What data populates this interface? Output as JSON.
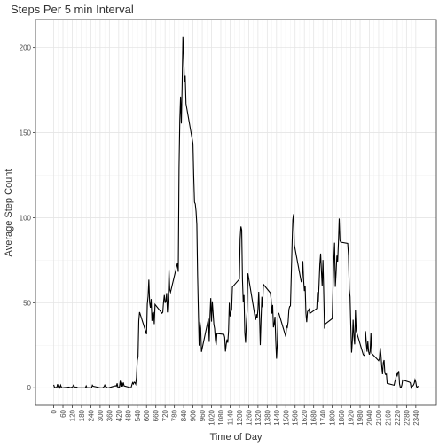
{
  "chart_data": {
    "type": "line",
    "title": "Steps Per 5 min Interval",
    "x_label": "Time of Day",
    "y_label": "Average Step Count",
    "color": "#000000",
    "grid": true,
    "xlim": [
      -117.75,
      2472.75
    ],
    "ylim": [
      -10.3,
      216.5
    ],
    "xticks": [
      0,
      60,
      120,
      180,
      240,
      300,
      360,
      420,
      480,
      540,
      600,
      660,
      720,
      780,
      840,
      900,
      960,
      1020,
      1080,
      1140,
      1200,
      1260,
      1320,
      1380,
      1440,
      1500,
      1560,
      1620,
      1680,
      1740,
      1800,
      1860,
      1920,
      1980,
      2040,
      2100,
      2160,
      2220,
      2280,
      2340
    ],
    "yticks": [
      0,
      50,
      100,
      150,
      200
    ],
    "x": [
      0,
      5,
      10,
      15,
      20,
      25,
      30,
      35,
      40,
      45,
      50,
      55,
      100,
      105,
      110,
      115,
      120,
      125,
      130,
      135,
      140,
      145,
      150,
      155,
      200,
      205,
      210,
      215,
      220,
      225,
      230,
      235,
      240,
      245,
      250,
      255,
      300,
      305,
      310,
      315,
      320,
      325,
      330,
      335,
      340,
      345,
      350,
      355,
      400,
      405,
      410,
      415,
      420,
      425,
      430,
      435,
      440,
      445,
      450,
      455,
      500,
      505,
      510,
      515,
      520,
      525,
      530,
      535,
      540,
      545,
      550,
      555,
      600,
      605,
      610,
      615,
      620,
      625,
      630,
      635,
      640,
      645,
      650,
      655,
      700,
      705,
      710,
      715,
      720,
      725,
      730,
      735,
      740,
      745,
      750,
      755,
      800,
      805,
      810,
      815,
      820,
      825,
      830,
      835,
      840,
      845,
      850,
      855,
      900,
      905,
      910,
      915,
      920,
      925,
      930,
      935,
      940,
      945,
      950,
      955,
      1000,
      1005,
      1010,
      1015,
      1020,
      1025,
      1030,
      1035,
      1040,
      1045,
      1050,
      1055,
      1100,
      1105,
      1110,
      1115,
      1120,
      1125,
      1130,
      1135,
      1140,
      1145,
      1150,
      1155,
      1200,
      1205,
      1210,
      1215,
      1220,
      1225,
      1230,
      1235,
      1240,
      1245,
      1250,
      1255,
      1300,
      1305,
      1310,
      1315,
      1320,
      1325,
      1330,
      1335,
      1340,
      1345,
      1350,
      1355,
      1400,
      1405,
      1410,
      1415,
      1420,
      1425,
      1430,
      1435,
      1440,
      1445,
      1450,
      1455,
      1500,
      1505,
      1510,
      1515,
      1520,
      1525,
      1530,
      1535,
      1540,
      1545,
      1550,
      1555,
      1600,
      1605,
      1610,
      1615,
      1620,
      1625,
      1630,
      1635,
      1640,
      1645,
      1650,
      1655,
      1700,
      1705,
      1710,
      1715,
      1720,
      1725,
      1730,
      1735,
      1740,
      1745,
      1750,
      1755,
      1800,
      1805,
      1810,
      1815,
      1820,
      1825,
      1830,
      1835,
      1840,
      1845,
      1850,
      1855,
      1900,
      1905,
      1910,
      1915,
      1920,
      1925,
      1930,
      1935,
      1940,
      1945,
      1950,
      1955,
      2000,
      2005,
      2010,
      2015,
      2020,
      2025,
      2030,
      2035,
      2040,
      2045,
      2050,
      2055,
      2100,
      2105,
      2110,
      2115,
      2120,
      2125,
      2130,
      2135,
      2140,
      2145,
      2150,
      2155,
      2200,
      2205,
      2210,
      2215,
      2220,
      2225,
      2230,
      2235,
      2240,
      2245,
      2250,
      2255,
      2300,
      2305,
      2310,
      2315,
      2320,
      2325,
      2330,
      2335,
      2340,
      2345,
      2350,
      2355
    ],
    "values": [
      1.7,
      0.3,
      0.1,
      0.2,
      0.1,
      2.1,
      0.5,
      0.9,
      0,
      1.5,
      0.3,
      0,
      0.4,
      0,
      0.2,
      0.3,
      0,
      1.1,
      1.8,
      0.2,
      0.2,
      0.4,
      0.3,
      0,
      0,
      0,
      1.1,
      0,
      0,
      0.1,
      0,
      0.2,
      0,
      0,
      1.5,
      0.9,
      0,
      0,
      0,
      0,
      0.2,
      0.6,
      1.6,
      0.6,
      0.5,
      0.1,
      0,
      0,
      1.2,
      0.9,
      2.6,
      0,
      0.3,
      0.4,
      4.1,
      0.7,
      3.5,
      0.8,
      3.1,
      1.1,
      0,
      1.6,
      3,
      2.2,
      3.3,
      3,
      2.1,
      6.1,
      16,
      18.3,
      39.5,
      44.5,
      31.5,
      49.3,
      53.8,
      63.5,
      50,
      47.1,
      52.2,
      39.3,
      44,
      44.2,
      37.4,
      49,
      43.8,
      44.4,
      50.5,
      54.5,
      49.9,
      51,
      55.7,
      44.3,
      52.3,
      69.5,
      57.8,
      56.2,
      73.4,
      68.2,
      129.4,
      157.5,
      171.2,
      155.4,
      177.3,
      206.2,
      195.9,
      179.6,
      183.4,
      167,
      143.5,
      124,
      109.1,
      108.1,
      103.7,
      96,
      66.2,
      45.2,
      24.8,
      38.8,
      35,
      21.1,
      40.6,
      27,
      42.4,
      52.7,
      38.9,
      50.8,
      44.3,
      37.4,
      34.7,
      28.3,
      25.1,
      31.9,
      31.4,
      29.7,
      21.3,
      25.5,
      28.4,
      26.5,
      33.4,
      50,
      42,
      44.6,
      46,
      59.2,
      63.9,
      87.7,
      94.8,
      92.8,
      63.4,
      50.2,
      54.5,
      32.4,
      26.5,
      37.7,
      45.1,
      67.3,
      42.3,
      39.9,
      43.3,
      41,
      46.2,
      56.4,
      42.8,
      25.1,
      40,
      53.5,
      47.3,
      60.8,
      55.8,
      52,
      43.6,
      48.7,
      35.5,
      37.5,
      41.8,
      27.5,
      17.1,
      26.1,
      43.6,
      43.8,
      30,
      36.1,
      35.5,
      38.8,
      46,
      47.8,
      48.1,
      65.3,
      82.9,
      98.7,
      102.1,
      84,
      62.1,
      64.1,
      74.5,
      63.2,
      56.9,
      59.8,
      43.9,
      38.6,
      44.7,
      45.5,
      46.2,
      43.7,
      46.6,
      56.3,
      50.7,
      61.2,
      72.7,
      78.9,
      68.9,
      59.7,
      75.1,
      56.5,
      34.8,
      37.5,
      40.7,
      58,
      74.7,
      85.3,
      59.3,
      67.8,
      77.7,
      74.2,
      85.3,
      99.5,
      86.6,
      85.6,
      84.9,
      77.8,
      58,
      53.4,
      36.3,
      20.7,
      27.4,
      40,
      30.2,
      25.5,
      45.7,
      33.5,
      19.6,
      19,
      19.3,
      33.3,
      26.8,
      21.2,
      27.3,
      21.3,
      19.5,
      21.3,
      32.3,
      20.2,
      15.9,
      17.2,
      23.5,
      19.2,
      12.5,
      8,
      14.7,
      16.3,
      8.7,
      7.8,
      8.1,
      2.6,
      1.5,
      3.7,
      4.8,
      8.5,
      7.1,
      8.7,
      9.8,
      2.2,
      0.3,
      0.1,
      1.6,
      4.6,
      3.3,
      2.8,
      0,
      0.8,
      1,
      1.6,
      2.6,
      4.7,
      3.3,
      0.6,
      0.2,
      1.1
    ]
  }
}
